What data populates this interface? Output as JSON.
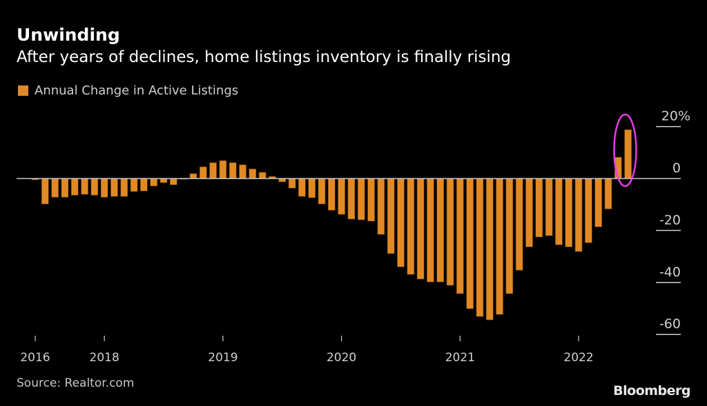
{
  "header": {
    "title": "Unwinding",
    "subtitle": "After years of declines, home listings inventory is finally rising"
  },
  "footer": {
    "source": "Source: Realtor.com",
    "brand": "Bloomberg"
  },
  "colors": {
    "bar": "#e18a25",
    "highlight": "#e63ce6",
    "zero_line": "#c8c8c8"
  },
  "chart_data": {
    "type": "bar",
    "title": "Unwinding",
    "subtitle": "After years of declines, home listings inventory is finally rising",
    "legend": [
      {
        "name": "Annual Change in Active Listings",
        "color": "#e18a25"
      }
    ],
    "legend_position": "top-left",
    "ylabel": "",
    "xlabel": "",
    "ylim": [
      -62,
      22
    ],
    "y_ticks": [
      20,
      0,
      -20,
      -40,
      -60
    ],
    "y_tick_labels": [
      "20%",
      "0",
      "-20",
      "-40",
      "-60"
    ],
    "y_axis_position": "right",
    "x_tick_labels": [
      "2016",
      "2018",
      "2019",
      "2020",
      "2021",
      "2022"
    ],
    "x_tick_bar_index": [
      0,
      7,
      19,
      31,
      43,
      55
    ],
    "grid": false,
    "annotation": "highlight ellipse around last two bars",
    "values": [
      -0.5,
      -9.8,
      -7.2,
      -7.2,
      -6.4,
      -6.1,
      -6.4,
      -7.2,
      -6.9,
      -6.9,
      -5.0,
      -4.8,
      -2.9,
      -1.6,
      -2.4,
      -0.3,
      1.9,
      4.5,
      6.1,
      6.9,
      6.1,
      5.3,
      3.7,
      2.4,
      0.8,
      -1.3,
      -3.7,
      -6.9,
      -7.4,
      -9.8,
      -12.2,
      -13.8,
      -15.6,
      -15.9,
      -16.4,
      -21.5,
      -28.9,
      -34.0,
      -36.9,
      -38.7,
      -39.8,
      -39.8,
      -41.1,
      -44.3,
      -50.1,
      -53.1,
      -54.4,
      -52.3,
      -44.3,
      -35.3,
      -26.3,
      -22.5,
      -22.0,
      -25.5,
      -26.3,
      -28.1,
      -24.7,
      -18.6,
      -11.7,
      8.2,
      18.8
    ],
    "highlight_indices": [
      59,
      60
    ]
  }
}
